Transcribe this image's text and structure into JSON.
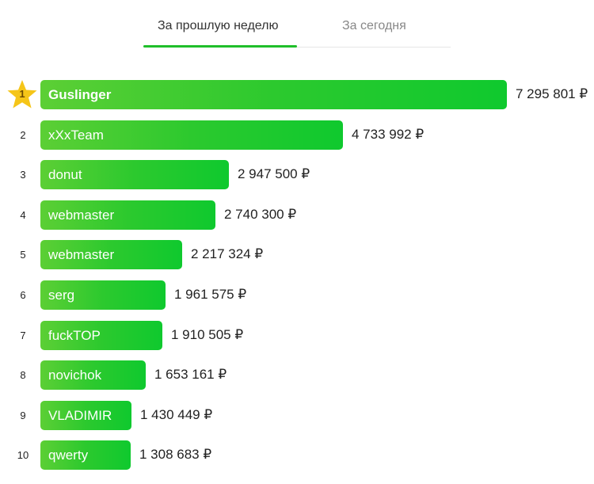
{
  "tabs": [
    {
      "label": "За прошлую неделю",
      "active": true
    },
    {
      "label": "За сегодня",
      "active": false
    }
  ],
  "colors": {
    "accent": "#1fbf2a",
    "bar_start": "#5ccf35",
    "bar_end": "#0fc92e",
    "star": "#f5c518"
  },
  "leaderboard": [
    {
      "rank": "1",
      "name": "Guslinger",
      "amount": "7 295 801 ₽",
      "value": 7295801,
      "icon": "star-icon"
    },
    {
      "rank": "2",
      "name": "xXxTeam",
      "amount": "4 733 992 ₽",
      "value": 4733992
    },
    {
      "rank": "3",
      "name": "donut",
      "amount": "2 947 500 ₽",
      "value": 2947500
    },
    {
      "rank": "4",
      "name": "webmaster",
      "amount": "2 740 300 ₽",
      "value": 2740300
    },
    {
      "rank": "5",
      "name": "webmaster",
      "amount": "2 217 324 ₽",
      "value": 2217324
    },
    {
      "rank": "6",
      "name": "serg",
      "amount": "1 961 575 ₽",
      "value": 1961575
    },
    {
      "rank": "7",
      "name": "fuckTOP",
      "amount": "1 910 505 ₽",
      "value": 1910505
    },
    {
      "rank": "8",
      "name": "novichok",
      "amount": "1 653 161 ₽",
      "value": 1653161
    },
    {
      "rank": "9",
      "name": "VLADIMIR",
      "amount": "1 430 449 ₽",
      "value": 1430449
    },
    {
      "rank": "10",
      "name": "qwerty",
      "amount": "1 308 683 ₽",
      "value": 1308683
    }
  ]
}
